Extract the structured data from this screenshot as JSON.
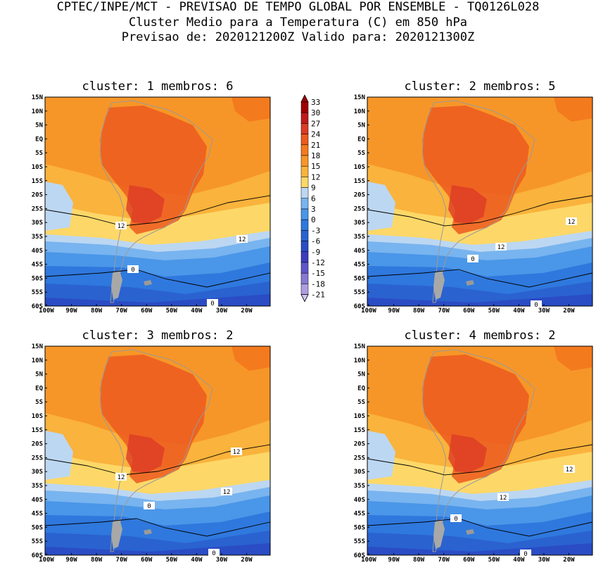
{
  "header": {
    "line1": "CPTEC/INPE/MCT - PREVISAO DE TEMPO GLOBAL POR ENSEMBLE - TQ0126L028",
    "line2": "Cluster Medio para a Temperatura (C) em 850 hPa",
    "line3": "Previsao de: 2020121200Z   Valido para: 2020121300Z"
  },
  "panels": [
    {
      "title": "cluster: 1   membros: 6",
      "contour_labels": [
        "12",
        "12",
        "0",
        "0"
      ]
    },
    {
      "title": "cluster: 2   membros: 5",
      "contour_labels": [
        "12",
        "12",
        "0",
        "0"
      ]
    },
    {
      "title": "cluster: 3   membros: 2",
      "contour_labels": [
        "12",
        "12",
        "12",
        "0",
        "0"
      ]
    },
    {
      "title": "cluster: 4   membros: 2",
      "contour_labels": [
        "12",
        "12",
        "0",
        "0"
      ]
    }
  ],
  "lat_ticks": [
    "15N",
    "10N",
    "5N",
    "EQ",
    "5S",
    "10S",
    "15S",
    "20S",
    "25S",
    "30S",
    "35S",
    "40S",
    "45S",
    "50S",
    "55S",
    "60S"
  ],
  "lon_ticks": [
    "100W",
    "90W",
    "80W",
    "70W",
    "60W",
    "50W",
    "40W",
    "30W",
    "20W"
  ],
  "legend": {
    "labels": [
      "33",
      "30",
      "27",
      "24",
      "21",
      "18",
      "15",
      "12",
      "9",
      "6",
      "3",
      "0",
      "-3",
      "-6",
      "-9",
      "-12",
      "-15",
      "-18",
      "-21"
    ],
    "colors": [
      "#a00000",
      "#c01a1a",
      "#dc3b26",
      "#ec5a1e",
      "#f47a1e",
      "#f79628",
      "#fab33c",
      "#fdd868",
      "#bcd7f2",
      "#78b4ef",
      "#4a96e8",
      "#2f78dd",
      "#2a62d0",
      "#2a4cc4",
      "#3d3cbe",
      "#5f55c8",
      "#8679d2",
      "#ae9ddf",
      "#d3c6ee"
    ]
  },
  "colors": {
    "land_border": "#9a9a9a",
    "contour": "#000000",
    "ocean_warm": "#f7962a",
    "ocean_mid": "#fdd868"
  }
}
